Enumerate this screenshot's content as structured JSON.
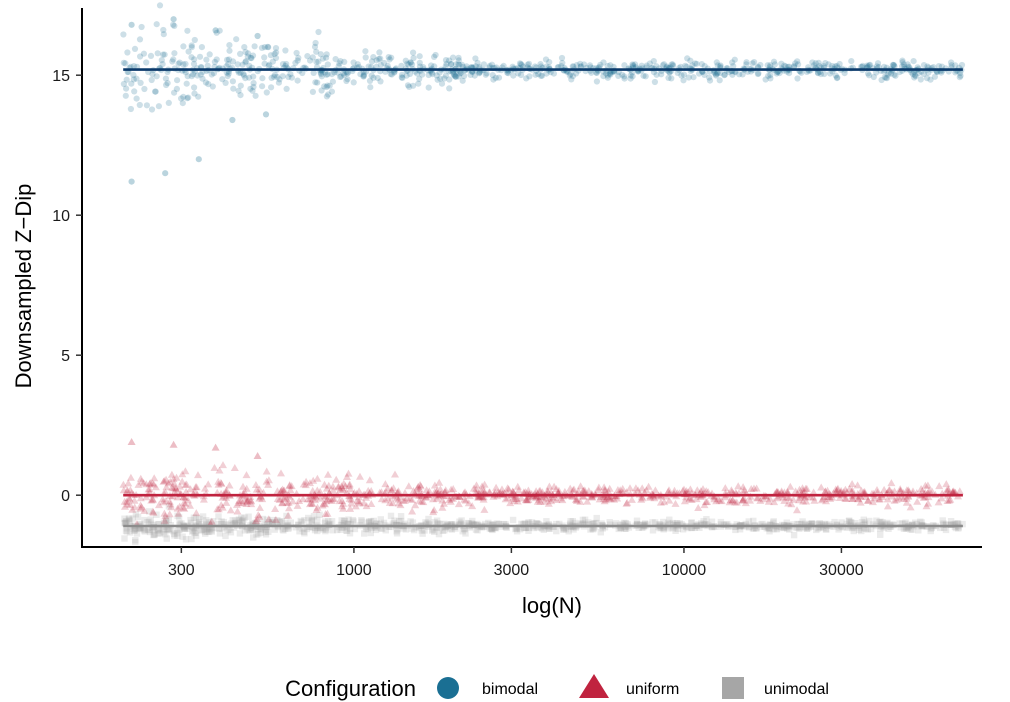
{
  "chart_data": {
    "type": "scatter",
    "title": "",
    "xlabel": "log(N)",
    "ylabel": "Downsampled Z−Dip",
    "x_scale": "log",
    "xlim": [
      150,
      80000
    ],
    "ylim": [
      -1.85,
      17.4
    ],
    "x_ticks": [
      300,
      1000,
      3000,
      10000,
      30000
    ],
    "x_tick_labels": [
      "300",
      "1000",
      "3000",
      "10000",
      "30000"
    ],
    "y_ticks": [
      0,
      5,
      10,
      15
    ],
    "y_tick_labels": [
      "0",
      "5",
      "10",
      "15"
    ],
    "grid": false,
    "legend": {
      "title": "Configuration",
      "position": "bottom"
    },
    "x_range_points": [
      200,
      70000
    ],
    "series": [
      {
        "name": "bimodal",
        "marker": "circle",
        "color": "#1a6f93",
        "line_color": "#0b3a6b",
        "trend": 15.2,
        "spread_at_min_n": 1.6,
        "spread_at_max_n": 0.35,
        "min_values": [
          11.2,
          11.5,
          12.0,
          13.4,
          13.6
        ],
        "max_values": [
          16.8,
          17.0,
          16.6,
          16.4
        ]
      },
      {
        "name": "uniform",
        "marker": "triangle",
        "color": "#c0233f",
        "line_color": "#c0233f",
        "trend": 0.0,
        "spread_at_min_n": 1.1,
        "spread_at_max_n": 0.35,
        "max_values": [
          1.9,
          1.8,
          1.7,
          1.4
        ]
      },
      {
        "name": "unimodal",
        "marker": "square",
        "color": "#a6a6a6",
        "line_color": "#8c8c8c",
        "trend": -1.1,
        "spread_at_min_n": 0.5,
        "spread_at_max_n": 0.2
      }
    ]
  }
}
